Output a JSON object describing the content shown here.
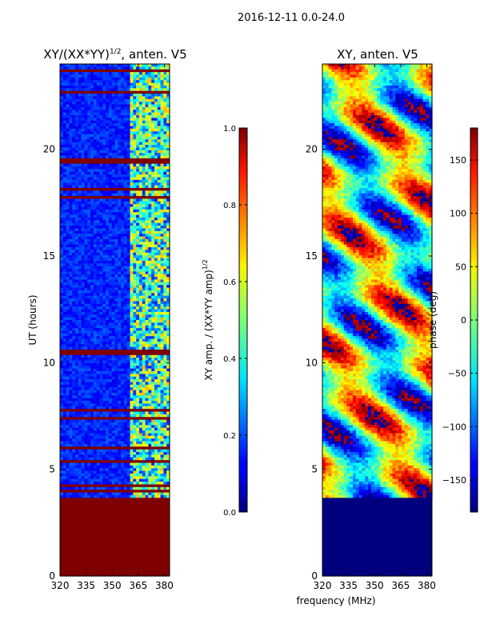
{
  "suptitle": "2016-12-11 0.0-24.0",
  "xlabel": "frequency (MHz)",
  "chart_data": [
    {
      "type": "heatmap",
      "title_main": "XY/(XX*YY)",
      "title_sup": "1/2",
      "title_rest": ", anten. V5",
      "ylabel": "UT (hours)",
      "xlim": [
        320,
        383
      ],
      "ylim": [
        0,
        24
      ],
      "xticks": [
        320,
        335,
        350,
        365,
        380
      ],
      "yticks": [
        0,
        5,
        10,
        15,
        20
      ],
      "colorbar": {
        "label_main": "XY amp. / (XX*YY amp)",
        "label_sup": "1/2",
        "range": [
          0.0,
          1.0
        ],
        "ticks": [
          0.0,
          0.2,
          0.4,
          0.6,
          0.8,
          1.0
        ],
        "tick_labels": [
          "0.0",
          "0.2",
          "0.4",
          "0.6",
          "0.8",
          "1.0"
        ]
      },
      "bad_time_bands_hours": [
        [
          0,
          3.65
        ],
        [
          3.9,
          4.05
        ],
        [
          10.3,
          10.6
        ],
        [
          17.65,
          17.78
        ],
        [
          19.3,
          19.55
        ]
      ]
    },
    {
      "type": "heatmap",
      "title_main": "XY, anten. V5",
      "title_sup": "",
      "title_rest": "",
      "ylabel": "",
      "xlim": [
        320,
        383
      ],
      "ylim": [
        0,
        24
      ],
      "xticks": [
        320,
        335,
        350,
        365,
        380
      ],
      "yticks": [
        0,
        5,
        10,
        15,
        20
      ],
      "colorbar": {
        "label_main": "phase (deg)",
        "label_sup": "",
        "range": [
          -180,
          180
        ],
        "ticks": [
          -150,
          -100,
          -50,
          0,
          50,
          100,
          150
        ],
        "tick_labels": [
          "−150",
          "−100",
          "−50",
          "0",
          "50",
          "100",
          "150"
        ]
      },
      "bad_time_bands_hours": [
        [
          0,
          3.65
        ]
      ]
    }
  ]
}
